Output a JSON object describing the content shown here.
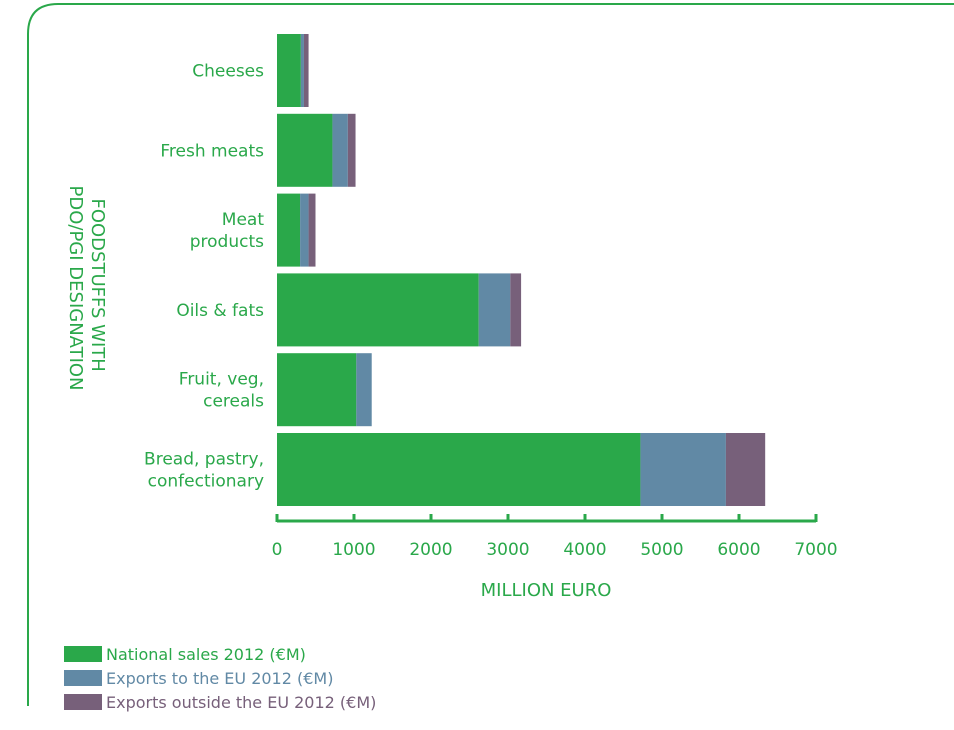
{
  "chart_data": {
    "type": "bar",
    "orientation": "horizontal",
    "stacked": true,
    "title": "",
    "xlabel": "MILLION EURO",
    "ylabel": "FOODSTUFFS WITH PDO/PGI DESIGNATION",
    "ylabel_lines": [
      "FOODSTUFFS WITH",
      "PDO/PGI DESIGNATION"
    ],
    "xlim": [
      0,
      7000
    ],
    "xticks": [
      0,
      1000,
      2000,
      3000,
      4000,
      5000,
      6000,
      7000
    ],
    "grid": false,
    "legend_position": "bottom-left",
    "categories": [
      "Cheeses",
      "Fresh meats",
      "Meat products",
      "Oils & fats",
      "Fruit, veg, cereals",
      "Bread, pastry, confectionary"
    ],
    "category_label_lines": [
      [
        "Cheeses"
      ],
      [
        "Fresh meats"
      ],
      [
        "Meat",
        "products"
      ],
      [
        "Oils & fats"
      ],
      [
        "Fruit, veg,",
        "cereals"
      ],
      [
        "Bread, pastry,",
        "confectionary"
      ]
    ],
    "series": [
      {
        "name": "National sales 2012 (€M)",
        "color": "#2aa84a",
        "values": [
          310,
          720,
          300,
          2620,
          1030,
          4720
        ]
      },
      {
        "name": "Exports to the EU 2012 (€M)",
        "color": "#6189a5",
        "values": [
          40,
          200,
          110,
          410,
          200,
          1110
        ]
      },
      {
        "name": "Exports outside the EU 2012 (€M)",
        "color": "#77607a",
        "values": [
          60,
          100,
          90,
          140,
          0,
          510
        ]
      }
    ]
  },
  "colors": {
    "frame": "#2aa84a",
    "text": "#2aa84a",
    "axis": "#2aa84a"
  }
}
